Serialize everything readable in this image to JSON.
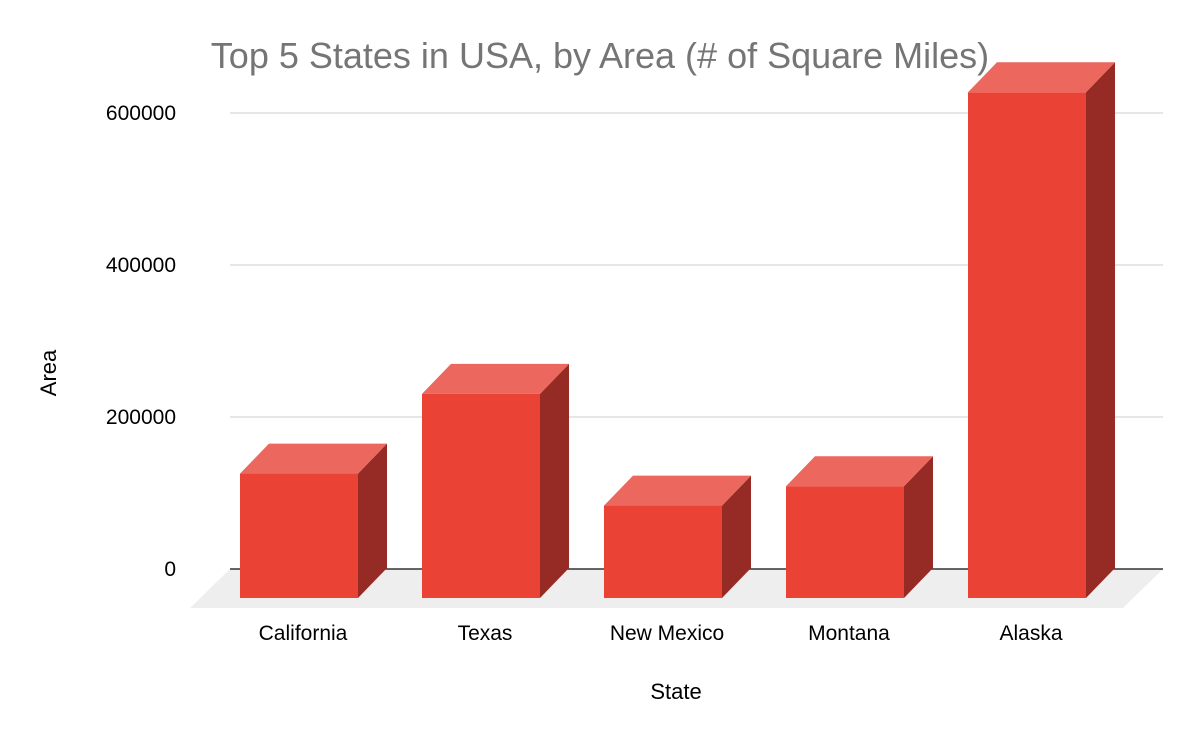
{
  "chart_data": {
    "type": "bar",
    "style": "3d",
    "title": "Top 5 States in USA, by Area (# of Square Miles)",
    "xlabel": "State",
    "ylabel": "Area",
    "categories": [
      "California",
      "Texas",
      "New Mexico",
      "Montana",
      "Alaska"
    ],
    "values": [
      163695,
      268596,
      121590,
      147040,
      665384
    ],
    "ylim": [
      0,
      600000
    ],
    "yticks": [
      0,
      200000,
      400000,
      600000
    ],
    "ytick_labels": [
      "0",
      "200000",
      "400000",
      "600000"
    ],
    "grid": true,
    "legend": "none",
    "colors": {
      "bar_front": "#EA4335",
      "bar_top": "#EC675E",
      "bar_side": "#962A24",
      "floor": "#EEEEEE",
      "grid": "#CCCCCC",
      "axis": "#333333",
      "title": "#757575",
      "text": "#000000"
    }
  }
}
